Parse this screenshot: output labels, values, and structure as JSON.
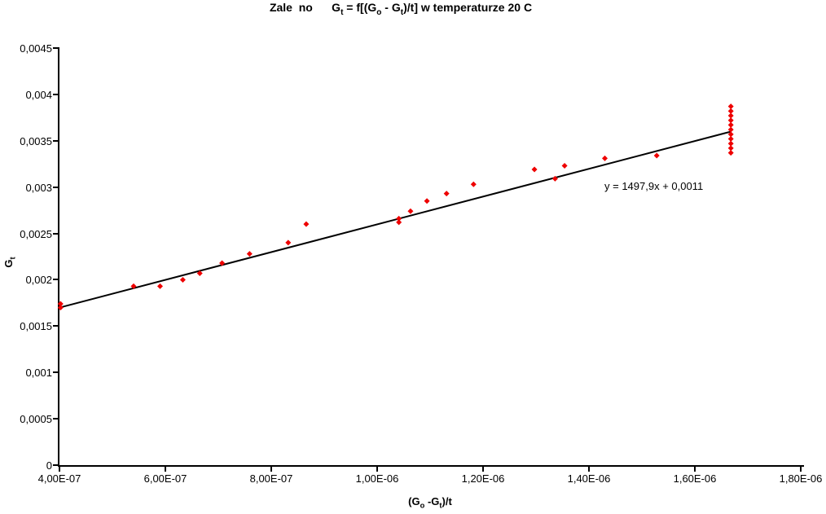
{
  "title": {
    "segments": [
      {
        "t": "Zale  no      G"
      },
      {
        "t": "t",
        "sub": true
      },
      {
        "t": " = f[(G"
      },
      {
        "t": "o",
        "sub": true
      },
      {
        "t": " - G"
      },
      {
        "t": "t",
        "sub": true
      },
      {
        "t": ")/t] w temperaturze 20 C"
      }
    ],
    "plain": "Zale no  Gt = f[(Go - Gt)/t] w temperaturze 20 C"
  },
  "equation_label": "y = 1497,9x + 0,0011",
  "axes": {
    "x": {
      "title_segments": [
        {
          "t": "(G"
        },
        {
          "t": "o",
          "sub": true
        },
        {
          "t": " -G"
        },
        {
          "t": "t",
          "sub": true
        },
        {
          "t": ")/t"
        }
      ],
      "ticks": [
        {
          "label": "4,00E-07",
          "value": 4e-07
        },
        {
          "label": "6,00E-07",
          "value": 6e-07
        },
        {
          "label": "8,00E-07",
          "value": 8e-07
        },
        {
          "label": "1,00E-06",
          "value": 1e-06
        },
        {
          "label": "1,20E-06",
          "value": 1.2e-06
        },
        {
          "label": "1,40E-06",
          "value": 1.4e-06
        },
        {
          "label": "1,60E-06",
          "value": 1.6e-06
        },
        {
          "label": "1,80E-06",
          "value": 1.8e-06
        }
      ]
    },
    "y": {
      "title_segments": [
        {
          "t": "G"
        },
        {
          "t": "t",
          "sub": true
        }
      ],
      "ticks": [
        {
          "label": "0,0045",
          "value": 0.0045
        },
        {
          "label": "0,004",
          "value": 0.004
        },
        {
          "label": "0,0035",
          "value": 0.0035
        },
        {
          "label": "0,003",
          "value": 0.003
        },
        {
          "label": "0,0025",
          "value": 0.0025
        },
        {
          "label": "0,002",
          "value": 0.002
        },
        {
          "label": "0,0015",
          "value": 0.0015
        },
        {
          "label": "0,001",
          "value": 0.001
        },
        {
          "label": "0,0005",
          "value": 0.0005
        },
        {
          "label": "0",
          "value": 0
        }
      ]
    }
  },
  "chart_data": {
    "type": "scatter",
    "title": "Zale no  Gt = f[(Go - Gt)/t] w temperaturze 20 C",
    "xlabel": "(Go -Gt)/t",
    "ylabel": "Gt",
    "xlim": [
      4e-07,
      1.8e-06
    ],
    "ylim": [
      0,
      0.0045
    ],
    "grid": false,
    "legend": "none",
    "marker_color": "#ee0000",
    "marker_shape": "diamond",
    "series": [
      {
        "name": "Gt",
        "points": [
          [
            4.02e-07,
            0.0017
          ],
          [
            4.02e-07,
            0.00174
          ],
          [
            5.4e-07,
            0.00193
          ],
          [
            5.9e-07,
            0.00193
          ],
          [
            6.33e-07,
            0.002
          ],
          [
            6.65e-07,
            0.00207
          ],
          [
            7.07e-07,
            0.00218
          ],
          [
            7.59e-07,
            0.00228
          ],
          [
            8.32e-07,
            0.0024
          ],
          [
            8.66e-07,
            0.0026
          ],
          [
            1.041e-06,
            0.00262
          ],
          [
            1.041e-06,
            0.00266
          ],
          [
            1.063e-06,
            0.00274
          ],
          [
            1.094e-06,
            0.00285
          ],
          [
            1.131e-06,
            0.00293
          ],
          [
            1.182e-06,
            0.00303
          ],
          [
            1.297e-06,
            0.00319
          ],
          [
            1.336e-06,
            0.00309
          ],
          [
            1.354e-06,
            0.00323
          ],
          [
            1.43e-06,
            0.00331
          ],
          [
            1.528e-06,
            0.00334
          ],
          [
            1.668e-06,
            0.00337
          ],
          [
            1.668e-06,
            0.00342
          ],
          [
            1.668e-06,
            0.00347
          ],
          [
            1.668e-06,
            0.00352
          ],
          [
            1.668e-06,
            0.00357
          ],
          [
            1.668e-06,
            0.00362
          ],
          [
            1.668e-06,
            0.00367
          ],
          [
            1.668e-06,
            0.00372
          ],
          [
            1.668e-06,
            0.00377
          ],
          [
            1.668e-06,
            0.00382
          ],
          [
            1.668e-06,
            0.00387
          ]
        ]
      }
    ],
    "trendline": {
      "label": "y = 1497,9x + 0,0011",
      "slope": 1497.9,
      "intercept": 0.0011,
      "x_start": 4.02e-07,
      "x_end": 1.668e-06,
      "color": "#000000"
    }
  }
}
